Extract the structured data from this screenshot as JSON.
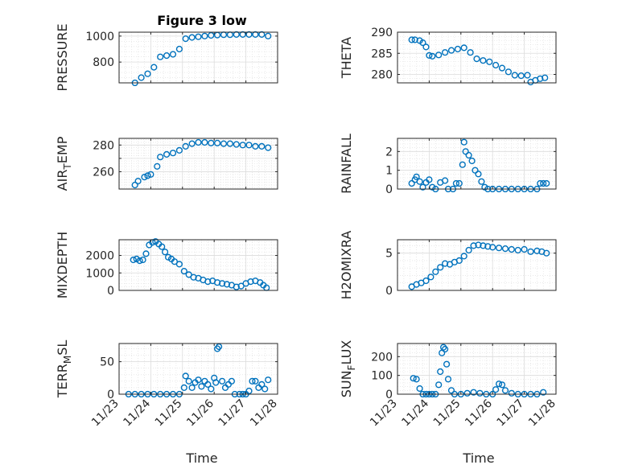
{
  "figure": {
    "title": "Figure 3 low",
    "xlabel": "Time",
    "marker_color": "#0072BD",
    "x_tick_labels": [
      "11/23",
      "11/24",
      "11/25",
      "11/26",
      "11/27",
      "11/28"
    ]
  },
  "chart_data": [
    {
      "type": "scatter",
      "title": "Figure 3 low",
      "ylabel": "PRESSURE",
      "xlim": [
        23,
        28
      ],
      "ylim": [
        640,
        1030
      ],
      "yticks": [
        800,
        1000
      ],
      "grid": true,
      "x": [
        23.5,
        23.7,
        23.9,
        24.1,
        24.3,
        24.5,
        24.7,
        24.9,
        25.1,
        25.3,
        25.5,
        25.7,
        25.9,
        26.1,
        26.3,
        26.5,
        26.7,
        26.9,
        27.1,
        27.3,
        27.5,
        27.7
      ],
      "y": [
        640,
        680,
        710,
        760,
        840,
        850,
        860,
        900,
        980,
        990,
        995,
        1000,
        1005,
        1008,
        1010,
        1010,
        1012,
        1012,
        1012,
        1012,
        1012,
        1000
      ]
    },
    {
      "type": "scatter",
      "ylabel": "THETA",
      "xlim": [
        23,
        28
      ],
      "ylim": [
        278,
        290
      ],
      "yticks": [
        280,
        285,
        290
      ],
      "grid": true,
      "x": [
        23.45,
        23.55,
        23.7,
        23.8,
        23.9,
        24.0,
        24.1,
        24.3,
        24.5,
        24.7,
        24.9,
        25.1,
        25.3,
        25.5,
        25.7,
        25.9,
        26.1,
        26.3,
        26.5,
        26.7,
        26.9,
        27.1,
        27.2,
        27.35,
        27.5,
        27.65
      ],
      "y": [
        288.2,
        288.2,
        288,
        287.5,
        286.5,
        284.5,
        284.3,
        284.6,
        285.2,
        285.7,
        286,
        286.3,
        285.2,
        283.7,
        283.3,
        283,
        282.2,
        281.5,
        280.6,
        279.8,
        279.7,
        279.8,
        278.2,
        278.6,
        279,
        279.2
      ]
    },
    {
      "type": "scatter",
      "ylabel": "AIR_TEMP",
      "xlim": [
        23,
        28
      ],
      "ylim": [
        247,
        285
      ],
      "yticks": [
        260,
        270,
        280
      ],
      "ytick_labels": [
        "260",
        "",
        "280"
      ],
      "grid": true,
      "x": [
        23.5,
        23.6,
        23.8,
        23.9,
        24.0,
        24.2,
        24.3,
        24.5,
        24.7,
        24.9,
        25.1,
        25.3,
        25.5,
        25.7,
        25.9,
        26.1,
        26.3,
        26.5,
        26.7,
        26.9,
        27.1,
        27.3,
        27.5,
        27.7
      ],
      "y": [
        250,
        253,
        256,
        257,
        258,
        264,
        271,
        273,
        274,
        276,
        279,
        281,
        282,
        282,
        281.5,
        281.5,
        281,
        281,
        280.5,
        280,
        280,
        279,
        279,
        278
      ]
    },
    {
      "type": "scatter",
      "ylabel": "RAINFALL",
      "xlim": [
        23,
        28
      ],
      "ylim": [
        0,
        2.7
      ],
      "yticks": [
        0,
        1,
        2
      ],
      "grid": true,
      "x": [
        23.45,
        23.55,
        23.6,
        23.7,
        23.8,
        23.9,
        24.0,
        24.1,
        24.2,
        24.35,
        24.5,
        24.6,
        24.75,
        24.85,
        24.95,
        25.05,
        25.1,
        25.15,
        25.25,
        25.35,
        25.45,
        25.55,
        25.65,
        25.75,
        25.85,
        26.0,
        26.2,
        26.4,
        26.6,
        26.8,
        27.0,
        27.2,
        27.4,
        27.5,
        27.6,
        27.7
      ],
      "y": [
        0.3,
        0.5,
        0.65,
        0.4,
        0.1,
        0.35,
        0.5,
        0.1,
        0,
        0.35,
        0.45,
        0,
        0,
        0.3,
        0.3,
        1.3,
        2.5,
        2.0,
        1.8,
        1.5,
        1.0,
        0.8,
        0.4,
        0.1,
        0,
        0,
        0,
        0,
        0,
        0,
        0,
        0,
        0,
        0.3,
        0.3,
        0.3
      ]
    },
    {
      "type": "scatter",
      "ylabel": "MIXDEPTH",
      "xlim": [
        23,
        28
      ],
      "ylim": [
        0,
        2900
      ],
      "yticks": [
        0,
        1000,
        2000
      ],
      "grid": true,
      "x": [
        23.45,
        23.55,
        23.65,
        23.75,
        23.85,
        23.95,
        24.05,
        24.15,
        24.25,
        24.35,
        24.45,
        24.55,
        24.65,
        24.75,
        24.9,
        25.05,
        25.2,
        25.35,
        25.5,
        25.65,
        25.8,
        25.95,
        26.1,
        26.25,
        26.4,
        26.55,
        26.7,
        26.85,
        27.0,
        27.15,
        27.3,
        27.45,
        27.55,
        27.65
      ],
      "y": [
        1750,
        1800,
        1700,
        1750,
        2100,
        2600,
        2750,
        2800,
        2650,
        2500,
        2200,
        1900,
        1800,
        1650,
        1500,
        1100,
        900,
        750,
        700,
        600,
        500,
        550,
        450,
        400,
        350,
        300,
        200,
        250,
        400,
        500,
        550,
        450,
        300,
        150
      ]
    },
    {
      "type": "scatter",
      "ylabel": "H2OMIXRA",
      "xlim": [
        23,
        28
      ],
      "ylim": [
        0,
        6.8
      ],
      "yticks": [
        0,
        5
      ],
      "grid": true,
      "x": [
        23.45,
        23.6,
        23.75,
        23.9,
        24.05,
        24.2,
        24.35,
        24.5,
        24.65,
        24.8,
        24.95,
        25.1,
        25.25,
        25.4,
        25.55,
        25.7,
        25.85,
        26.0,
        26.2,
        26.4,
        26.6,
        26.8,
        27.0,
        27.2,
        27.4,
        27.55,
        27.7
      ],
      "y": [
        0.5,
        0.8,
        1.0,
        1.3,
        1.8,
        2.5,
        3.1,
        3.6,
        3.5,
        3.8,
        4.0,
        4.6,
        5.4,
        6.0,
        6.1,
        6.0,
        5.9,
        5.8,
        5.7,
        5.6,
        5.5,
        5.4,
        5.5,
        5.2,
        5.3,
        5.2,
        5.0
      ]
    },
    {
      "type": "scatter",
      "ylabel": "TERR_MSL",
      "xlim": [
        23,
        28
      ],
      "ylim": [
        0,
        78
      ],
      "yticks": [
        0,
        50
      ],
      "grid": true,
      "x": [
        23.3,
        23.5,
        23.7,
        23.9,
        24.1,
        24.3,
        24.5,
        24.7,
        24.9,
        25.05,
        25.1,
        25.2,
        25.3,
        25.4,
        25.5,
        25.6,
        25.7,
        25.8,
        25.9,
        26.0,
        26.05,
        26.1,
        26.15,
        26.25,
        26.35,
        26.45,
        26.55,
        26.65,
        26.8,
        26.9,
        27.0,
        27.1,
        27.2,
        27.3,
        27.4,
        27.5,
        27.6,
        27.7
      ],
      "y": [
        0,
        0,
        0,
        0,
        0,
        0,
        0,
        0,
        0,
        10,
        28,
        20,
        10,
        18,
        22,
        12,
        20,
        15,
        8,
        25,
        18,
        70,
        73,
        20,
        10,
        15,
        20,
        0,
        0,
        0,
        0,
        5,
        20,
        20,
        10,
        15,
        8,
        22
      ]
    },
    {
      "type": "scatter",
      "ylabel": "SUN_FLUX",
      "xlim": [
        23,
        28
      ],
      "ylim": [
        0,
        270
      ],
      "yticks": [
        0,
        100,
        200
      ],
      "grid": true,
      "x": [
        23.5,
        23.6,
        23.7,
        23.8,
        23.9,
        24.0,
        24.1,
        24.2,
        24.3,
        24.35,
        24.4,
        24.45,
        24.5,
        24.55,
        24.6,
        24.7,
        24.8,
        25.0,
        25.2,
        25.4,
        25.6,
        25.8,
        26.0,
        26.1,
        26.2,
        26.3,
        26.4,
        26.6,
        26.8,
        27.0,
        27.2,
        27.4,
        27.6
      ],
      "y": [
        85,
        80,
        30,
        0,
        0,
        0,
        0,
        0,
        50,
        120,
        220,
        250,
        240,
        160,
        80,
        20,
        0,
        0,
        5,
        10,
        5,
        0,
        0,
        25,
        55,
        50,
        20,
        5,
        0,
        0,
        0,
        0,
        10
      ]
    }
  ]
}
